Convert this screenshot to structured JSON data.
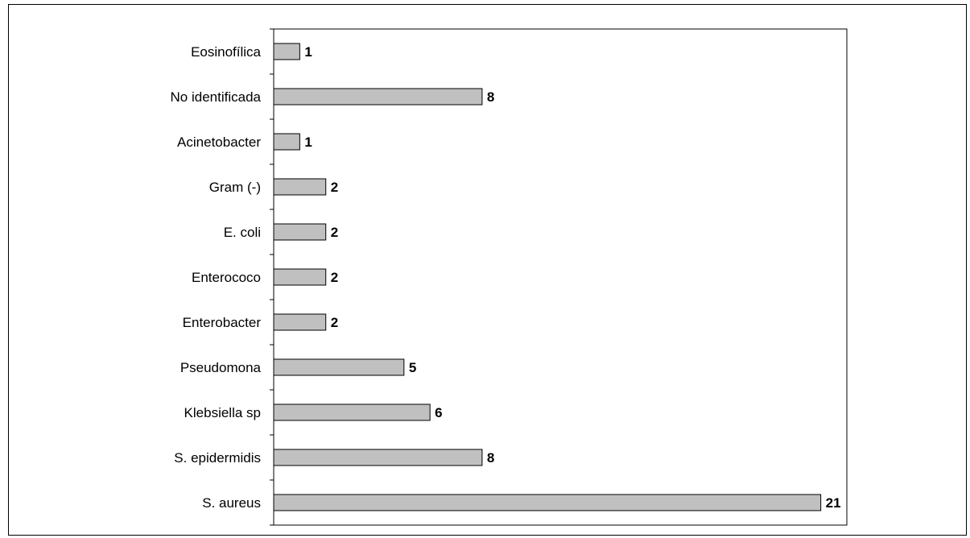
{
  "chart_data": {
    "type": "bar",
    "orientation": "horizontal",
    "categories": [
      "S. aureus",
      "S. epidermidis",
      "Klebsiella sp",
      "Pseudomona",
      "Enterobacter",
      "Enterococo",
      "E. coli",
      "Gram (-)",
      "Acinetobacter",
      "No identificada",
      "Eosinofílica"
    ],
    "values": [
      21,
      8,
      6,
      5,
      2,
      2,
      2,
      2,
      1,
      8,
      1
    ],
    "title": "",
    "xlabel": "",
    "ylabel": "",
    "xlim": [
      0,
      22
    ],
    "grid": false,
    "data_labels": true,
    "colors": {
      "bar_fill": "#c0c0c0",
      "bar_stroke": "#000000",
      "axis": "#000000"
    }
  }
}
